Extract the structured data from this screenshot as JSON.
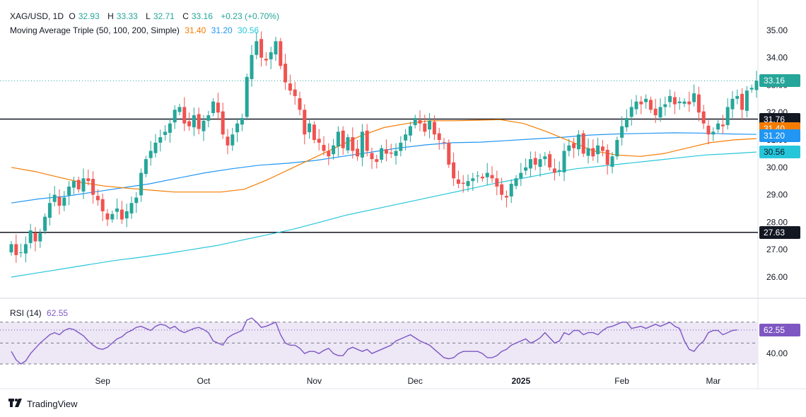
{
  "header": {
    "symbol": "XAG/USD, 1D",
    "o_label": "O",
    "o": "32.93",
    "h_label": "H",
    "h": "33.33",
    "l_label": "L",
    "l": "32.71",
    "c_label": "C",
    "c": "33.16",
    "change": "+0.23 (+0.70%)",
    "ma_title": "Moving Average Triple (50, 100, 200, Simple)",
    "ma50": "31.40",
    "ma100": "31.20",
    "ma200": "30.56"
  },
  "rsi_header": {
    "title": "RSI (14)",
    "value": "62.55"
  },
  "badges": {
    "last": "33.16",
    "line_hi": "31.76",
    "ma50": "31.40",
    "ma100": "31.20",
    "ma200": "30.56",
    "line_lo": "27.63",
    "rsi": "62.55"
  },
  "colors": {
    "up": "#26a69a",
    "down": "#ef5350",
    "ma50": "#f57c00",
    "ma100": "#2196f3",
    "ma200": "#26c6da",
    "rsi": "#7e57c2",
    "rsi_band": "#ede7f6",
    "hline": "#131722"
  },
  "logo": "TradingView",
  "chart_data": {
    "type": "candlestick",
    "symbol": "XAG/USD",
    "timeframe": "1D",
    "y_ticks": [
      26,
      27,
      28,
      29,
      30,
      31,
      32,
      33,
      34,
      35
    ],
    "y_tick_labels": [
      "26.00",
      "27.00",
      "28.00",
      "29.00",
      "30.00",
      "31.00",
      "32.00",
      "33.00",
      "34.00",
      "35.00"
    ],
    "x_ticks": [
      {
        "label": "Sep",
        "index": 19
      },
      {
        "label": "Oct",
        "index": 40
      },
      {
        "label": "Nov",
        "index": 63
      },
      {
        "label": "Dec",
        "index": 84
      },
      {
        "label": "2025",
        "index": 106
      },
      {
        "label": "Feb",
        "index": 127
      },
      {
        "label": "Mar",
        "index": 146
      }
    ],
    "horizontal_levels": [
      31.76,
      27.63
    ],
    "last_close": 33.16,
    "closes": [
      27.2,
      26.8,
      26.9,
      27.2,
      27.7,
      27.3,
      27.6,
      28.2,
      28.7,
      29.0,
      28.6,
      28.9,
      29.3,
      29.5,
      29.2,
      29.6,
      29.5,
      29.0,
      28.8,
      28.4,
      28.1,
      28.3,
      28.5,
      28.1,
      28.4,
      28.7,
      28.9,
      29.8,
      30.3,
      30.6,
      30.9,
      31.1,
      31.3,
      31.6,
      32.1,
      32.2,
      31.6,
      31.5,
      31.9,
      31.4,
      31.7,
      31.9,
      32.4,
      32.0,
      31.2,
      30.8,
      31.2,
      31.6,
      31.8,
      33.3,
      34.1,
      34.6,
      34.0,
      33.9,
      34.2,
      34.6,
      33.7,
      33.1,
      32.8,
      32.6,
      32.1,
      31.2,
      31.6,
      31.0,
      30.9,
      30.6,
      30.4,
      30.8,
      31.3,
      30.7,
      31.1,
      30.6,
      30.4,
      31.3,
      30.6,
      30.3,
      30.2,
      30.7,
      30.5,
      30.5,
      30.6,
      30.9,
      31.2,
      31.5,
      31.8,
      31.6,
      31.3,
      31.7,
      31.2,
      31.0,
      30.9,
      30.1,
      29.6,
      29.4,
      29.4,
      29.5,
      29.6,
      29.7,
      29.6,
      29.8,
      29.6,
      29.3,
      29.0,
      28.9,
      29.4,
      29.6,
      29.8,
      30.0,
      30.3,
      30.1,
      30.3,
      30.4,
      30.0,
      29.8,
      29.9,
      30.6,
      30.8,
      30.7,
      31.2,
      30.5,
      30.7,
      30.4,
      30.8,
      30.6,
      30.1,
      30.4,
      31.0,
      31.5,
      31.8,
      32.2,
      32.4,
      32.3,
      32.5,
      32.1,
      31.9,
      32.2,
      32.3,
      32.6,
      32.3,
      32.4,
      32.4,
      32.3,
      32.7,
      32.0,
      31.6,
      31.2,
      31.3,
      31.6,
      31.5,
      32.2,
      32.5,
      32.6,
      32.1,
      32.8,
      32.9,
      33.16
    ],
    "ma50": {
      "start": 0,
      "values": [
        30.0,
        29.85,
        29.65,
        29.45,
        29.32,
        29.24,
        29.17,
        29.1,
        29.1,
        29.1,
        29.2,
        29.55,
        29.95,
        30.35,
        30.75,
        31.15,
        31.45,
        31.6,
        31.7,
        31.7,
        31.72,
        31.74,
        31.6,
        31.3,
        30.95,
        30.6,
        30.45,
        30.4,
        30.5,
        30.7,
        30.9,
        31.0,
        31.05
      ]
    },
    "ma100": {
      "start": 0,
      "values": [
        28.7,
        28.85,
        28.95,
        29.1,
        29.25,
        29.4,
        29.6,
        29.8,
        29.95,
        30.08,
        30.15,
        30.25,
        30.4,
        30.55,
        30.7,
        30.82,
        30.9,
        30.92,
        30.98,
        31.04,
        31.1,
        31.18,
        31.22,
        31.24,
        31.26,
        31.25,
        31.22,
        31.2
      ]
    },
    "ma200": {
      "start": 0,
      "values": [
        26.0,
        26.15,
        26.3,
        26.45,
        26.6,
        26.72,
        26.85,
        27.0,
        27.15,
        27.35,
        27.55,
        27.75,
        28.0,
        28.25,
        28.45,
        28.65,
        28.85,
        29.05,
        29.25,
        29.45,
        29.62,
        29.8,
        29.95,
        30.05,
        30.15,
        30.25,
        30.35,
        30.45,
        30.5,
        30.56
      ]
    },
    "rsi": {
      "ticks": [
        40.0
      ],
      "tick_labels": [
        "40.00"
      ],
      "levels": [
        70,
        50,
        30
      ],
      "values": [
        42,
        34,
        30,
        33,
        40,
        45,
        50,
        54,
        58,
        60,
        58,
        62,
        64,
        63,
        60,
        57,
        52,
        48,
        45,
        44,
        46,
        50,
        54,
        56,
        60,
        62,
        65,
        66,
        64,
        62,
        66,
        68,
        67,
        64,
        66,
        62,
        60,
        62,
        64,
        65,
        63,
        60,
        52,
        50,
        48,
        55,
        58,
        60,
        62,
        72,
        74,
        70,
        65,
        66,
        68,
        70,
        58,
        50,
        48,
        48,
        45,
        40,
        42,
        42,
        40,
        43,
        45,
        40,
        38,
        38,
        44,
        46,
        44,
        42,
        44,
        40,
        42,
        44,
        46,
        48,
        52,
        54,
        56,
        58,
        55,
        52,
        50,
        48,
        44,
        40,
        36,
        35,
        36,
        40,
        42,
        42,
        42,
        42,
        40,
        36,
        36,
        38,
        42,
        44,
        48,
        50,
        52,
        54,
        50,
        52,
        55,
        60,
        55,
        50,
        52,
        60,
        58,
        62,
        62,
        58,
        60,
        60,
        58,
        62,
        65,
        66,
        68,
        70,
        70,
        64,
        65,
        66,
        64,
        66,
        68,
        66,
        68,
        70,
        66,
        64,
        52,
        44,
        42,
        48,
        52,
        60,
        62,
        62,
        58,
        60,
        62,
        62.55
      ]
    }
  }
}
